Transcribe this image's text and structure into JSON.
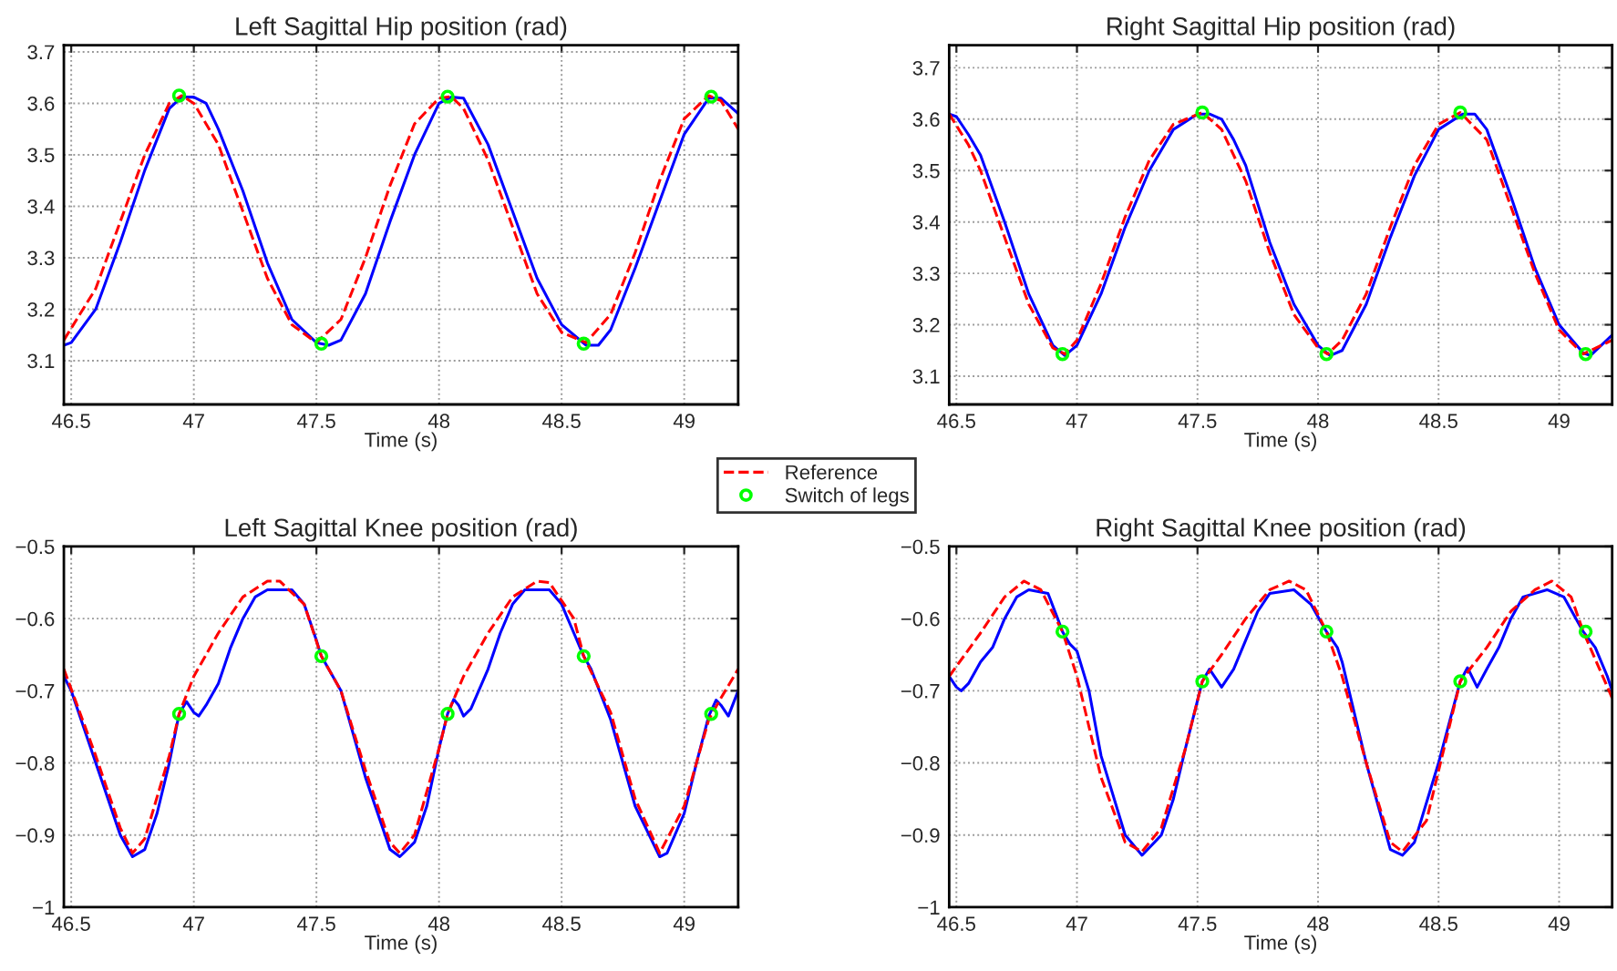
{
  "chart_data": [
    {
      "type": "line",
      "title": "Left Sagittal Hip position (rad)",
      "xlabel": "Time (s)",
      "xlim": [
        46.47,
        49.22
      ],
      "xticks": [
        46.5,
        47,
        47.5,
        48,
        48.5,
        49
      ],
      "ylim": [
        3.015,
        3.713
      ],
      "yticks": [
        3.1,
        3.2,
        3.3,
        3.4,
        3.5,
        3.6,
        3.7
      ],
      "grid": true,
      "legend": "bottom right",
      "series": [
        {
          "color": "#0000ff",
          "line_style": "solid",
          "x": [
            46.47,
            46.5,
            46.6,
            46.7,
            46.8,
            46.9,
            46.95,
            47.0,
            47.05,
            47.1,
            47.2,
            47.3,
            47.4,
            47.5,
            47.55,
            47.6,
            47.7,
            47.8,
            47.9,
            48.0,
            48.05,
            48.1,
            48.2,
            48.3,
            48.4,
            48.5,
            48.6,
            48.65,
            48.7,
            48.8,
            48.9,
            49.0,
            49.1,
            49.15,
            49.22
          ],
          "values": [
            3.13,
            3.135,
            3.2,
            3.33,
            3.47,
            3.59,
            3.612,
            3.612,
            3.6,
            3.55,
            3.43,
            3.29,
            3.18,
            3.135,
            3.13,
            3.14,
            3.23,
            3.37,
            3.5,
            3.6,
            3.612,
            3.61,
            3.52,
            3.39,
            3.26,
            3.17,
            3.13,
            3.13,
            3.16,
            3.28,
            3.41,
            3.54,
            3.61,
            3.61,
            3.58
          ]
        },
        {
          "name": "Reference",
          "color": "#ff0000",
          "line_style": "dashed",
          "x": [
            46.47,
            46.6,
            46.7,
            46.8,
            46.9,
            46.95,
            47.0,
            47.1,
            47.2,
            47.3,
            47.4,
            47.5,
            47.6,
            47.7,
            47.8,
            47.9,
            48.0,
            48.05,
            48.1,
            48.2,
            48.3,
            48.4,
            48.5,
            48.6,
            48.7,
            48.8,
            48.9,
            49.0,
            49.1,
            49.15,
            49.22
          ],
          "values": [
            3.14,
            3.24,
            3.37,
            3.5,
            3.6,
            3.615,
            3.6,
            3.52,
            3.39,
            3.26,
            3.17,
            3.135,
            3.18,
            3.3,
            3.44,
            3.56,
            3.61,
            3.613,
            3.59,
            3.49,
            3.36,
            3.23,
            3.155,
            3.135,
            3.19,
            3.31,
            3.45,
            3.57,
            3.615,
            3.605,
            3.55
          ]
        },
        {
          "name": "Switch of legs",
          "type": "scatter",
          "marker": "circle",
          "color": "#00ff00",
          "x": [
            46.94,
            47.52,
            48.035,
            48.59,
            49.11
          ],
          "values": [
            3.615,
            3.133,
            3.613,
            3.133,
            3.613
          ]
        }
      ]
    },
    {
      "type": "line",
      "title": "Right Sagittal Hip position (rad)",
      "xlabel": "Time (s)",
      "xlim": [
        46.47,
        49.22
      ],
      "xticks": [
        46.5,
        47,
        47.5,
        48,
        48.5,
        49
      ],
      "ylim": [
        3.045,
        3.744
      ],
      "yticks": [
        3.1,
        3.2,
        3.3,
        3.4,
        3.5,
        3.6,
        3.7
      ],
      "grid": true,
      "series": [
        {
          "color": "#0000ff",
          "line_style": "solid",
          "x": [
            46.47,
            46.5,
            46.55,
            46.6,
            46.7,
            46.8,
            46.9,
            46.95,
            47.0,
            47.1,
            47.2,
            47.3,
            47.4,
            47.5,
            47.55,
            47.6,
            47.65,
            47.7,
            47.8,
            47.9,
            48.0,
            48.05,
            48.1,
            48.2,
            48.3,
            48.4,
            48.5,
            48.6,
            48.65,
            48.7,
            48.8,
            48.9,
            49.0,
            49.1,
            49.13,
            49.22
          ],
          "values": [
            3.61,
            3.605,
            3.57,
            3.53,
            3.4,
            3.26,
            3.16,
            3.14,
            3.16,
            3.26,
            3.39,
            3.5,
            3.58,
            3.61,
            3.61,
            3.6,
            3.56,
            3.51,
            3.36,
            3.24,
            3.16,
            3.14,
            3.15,
            3.24,
            3.37,
            3.49,
            3.58,
            3.61,
            3.61,
            3.58,
            3.45,
            3.31,
            3.2,
            3.145,
            3.14,
            3.18
          ]
        },
        {
          "name": "Reference",
          "color": "#ff0000",
          "line_style": "dashed",
          "x": [
            46.47,
            46.55,
            46.6,
            46.7,
            46.8,
            46.9,
            46.95,
            47.0,
            47.1,
            47.2,
            47.3,
            47.4,
            47.52,
            47.6,
            47.7,
            47.8,
            47.9,
            48.0,
            48.04,
            48.1,
            48.2,
            48.3,
            48.4,
            48.5,
            48.59,
            48.7,
            48.8,
            48.9,
            49.0,
            49.1,
            49.22
          ],
          "values": [
            3.61,
            3.55,
            3.5,
            3.37,
            3.24,
            3.155,
            3.143,
            3.17,
            3.28,
            3.41,
            3.52,
            3.59,
            3.613,
            3.58,
            3.48,
            3.34,
            3.22,
            3.155,
            3.143,
            3.17,
            3.26,
            3.39,
            3.51,
            3.59,
            3.613,
            3.56,
            3.43,
            3.3,
            3.19,
            3.143,
            3.17
          ]
        },
        {
          "name": "Switch of legs",
          "type": "scatter",
          "marker": "circle",
          "color": "#00ff00",
          "x": [
            46.94,
            47.52,
            48.035,
            48.59,
            49.11
          ],
          "values": [
            3.143,
            3.613,
            3.143,
            3.613,
            3.143
          ]
        }
      ]
    },
    {
      "type": "line",
      "title": "Left Sagittal Knee position (rad)",
      "xlabel": "Time (s)",
      "xlim": [
        46.47,
        49.22
      ],
      "xticks": [
        46.5,
        47,
        47.5,
        48,
        48.5,
        49
      ],
      "ylim": [
        -1,
        -0.5
      ],
      "yticks": [
        {
          "value": -1,
          "label": "−1"
        },
        {
          "value": -0.9,
          "label": "−0.9"
        },
        {
          "value": -0.8,
          "label": "−0.8"
        },
        {
          "value": -0.7,
          "label": "−0.7"
        },
        {
          "value": -0.6,
          "label": "−0.6"
        },
        {
          "value": -0.5,
          "label": "−0.5"
        }
      ],
      "grid": true,
      "series": [
        {
          "color": "#0000ff",
          "line_style": "solid",
          "x": [
            46.47,
            46.5,
            46.6,
            46.7,
            46.75,
            46.8,
            46.85,
            46.9,
            46.94,
            46.97,
            47.0,
            47.02,
            47.05,
            47.1,
            47.15,
            47.2,
            47.25,
            47.3,
            47.4,
            47.45,
            47.5,
            47.52,
            47.55,
            47.6,
            47.7,
            47.8,
            47.84,
            47.9,
            47.95,
            48.0,
            48.035,
            48.06,
            48.08,
            48.1,
            48.13,
            48.2,
            48.25,
            48.3,
            48.35,
            48.45,
            48.5,
            48.55,
            48.59,
            48.62,
            48.7,
            48.8,
            48.9,
            48.93,
            49.0,
            49.05,
            49.1,
            49.13,
            49.15,
            49.18,
            49.22
          ],
          "values": [
            -0.68,
            -0.7,
            -0.8,
            -0.9,
            -0.93,
            -0.92,
            -0.87,
            -0.8,
            -0.732,
            -0.715,
            -0.73,
            -0.735,
            -0.72,
            -0.69,
            -0.64,
            -0.6,
            -0.57,
            -0.56,
            -0.56,
            -0.58,
            -0.63,
            -0.652,
            -0.67,
            -0.7,
            -0.82,
            -0.92,
            -0.93,
            -0.91,
            -0.86,
            -0.78,
            -0.732,
            -0.712,
            -0.72,
            -0.735,
            -0.725,
            -0.67,
            -0.62,
            -0.58,
            -0.56,
            -0.56,
            -0.58,
            -0.62,
            -0.652,
            -0.67,
            -0.74,
            -0.86,
            -0.93,
            -0.925,
            -0.87,
            -0.8,
            -0.735,
            -0.713,
            -0.72,
            -0.735,
            -0.7
          ]
        },
        {
          "name": "Reference",
          "color": "#ff0000",
          "line_style": "dashed",
          "x": [
            46.47,
            46.6,
            46.7,
            46.75,
            46.8,
            46.9,
            46.94,
            47.0,
            47.1,
            47.2,
            47.3,
            47.35,
            47.45,
            47.52,
            47.6,
            47.7,
            47.8,
            47.84,
            47.9,
            48.0,
            48.035,
            48.1,
            48.2,
            48.3,
            48.4,
            48.45,
            48.55,
            48.59,
            48.7,
            48.8,
            48.9,
            49.0,
            49.1,
            49.15,
            49.22
          ],
          "values": [
            -0.67,
            -0.79,
            -0.89,
            -0.925,
            -0.905,
            -0.79,
            -0.732,
            -0.68,
            -0.62,
            -0.57,
            -0.548,
            -0.548,
            -0.58,
            -0.652,
            -0.7,
            -0.81,
            -0.91,
            -0.925,
            -0.9,
            -0.78,
            -0.732,
            -0.68,
            -0.62,
            -0.57,
            -0.548,
            -0.55,
            -0.6,
            -0.652,
            -0.73,
            -0.85,
            -0.925,
            -0.86,
            -0.74,
            -0.71,
            -0.67
          ]
        },
        {
          "name": "Switch of legs",
          "type": "scatter",
          "marker": "circle",
          "color": "#00ff00",
          "x": [
            46.94,
            47.52,
            48.035,
            48.59,
            49.11
          ],
          "values": [
            -0.732,
            -0.652,
            -0.732,
            -0.652,
            -0.732
          ]
        }
      ]
    },
    {
      "type": "line",
      "title": "Right Sagittal Knee position (rad)",
      "xlabel": "Time (s)",
      "xlim": [
        46.47,
        49.22
      ],
      "xticks": [
        46.5,
        47,
        47.5,
        48,
        48.5,
        49
      ],
      "ylim": [
        -1,
        -0.5
      ],
      "yticks": [
        {
          "value": -1,
          "label": "−1"
        },
        {
          "value": -0.9,
          "label": "−0.9"
        },
        {
          "value": -0.8,
          "label": "−0.8"
        },
        {
          "value": -0.7,
          "label": "−0.7"
        },
        {
          "value": -0.6,
          "label": "−0.6"
        },
        {
          "value": -0.5,
          "label": "−0.5"
        }
      ],
      "grid": true,
      "series": [
        {
          "color": "#0000ff",
          "line_style": "solid",
          "x": [
            46.47,
            46.5,
            46.52,
            46.55,
            46.6,
            46.65,
            46.7,
            46.75,
            46.8,
            46.88,
            46.92,
            46.94,
            46.97,
            47.0,
            47.05,
            47.1,
            47.2,
            47.27,
            47.35,
            47.4,
            47.45,
            47.52,
            47.55,
            47.6,
            47.65,
            47.7,
            47.75,
            47.8,
            47.9,
            47.97,
            48.035,
            48.08,
            48.1,
            48.2,
            48.3,
            48.35,
            48.4,
            48.5,
            48.59,
            48.62,
            48.66,
            48.7,
            48.75,
            48.8,
            48.85,
            48.95,
            49.02,
            49.1,
            49.15,
            49.2,
            49.22
          ],
          "values": [
            -0.68,
            -0.695,
            -0.7,
            -0.69,
            -0.66,
            -0.64,
            -0.6,
            -0.57,
            -0.56,
            -0.565,
            -0.6,
            -0.618,
            -0.635,
            -0.645,
            -0.7,
            -0.79,
            -0.9,
            -0.928,
            -0.9,
            -0.85,
            -0.78,
            -0.687,
            -0.67,
            -0.695,
            -0.67,
            -0.63,
            -0.59,
            -0.565,
            -0.56,
            -0.58,
            -0.618,
            -0.64,
            -0.66,
            -0.8,
            -0.92,
            -0.928,
            -0.91,
            -0.8,
            -0.687,
            -0.668,
            -0.695,
            -0.67,
            -0.64,
            -0.6,
            -0.57,
            -0.56,
            -0.57,
            -0.618,
            -0.64,
            -0.68,
            -0.7
          ]
        },
        {
          "name": "Reference",
          "color": "#ff0000",
          "line_style": "dashed",
          "x": [
            46.47,
            46.6,
            46.7,
            46.78,
            46.85,
            46.94,
            47.0,
            47.1,
            47.2,
            47.27,
            47.35,
            47.45,
            47.52,
            47.6,
            47.7,
            47.8,
            47.88,
            47.95,
            48.035,
            48.1,
            48.2,
            48.3,
            48.35,
            48.45,
            48.59,
            48.7,
            48.8,
            48.9,
            48.97,
            49.05,
            49.1,
            49.22
          ],
          "values": [
            -0.68,
            -0.62,
            -0.57,
            -0.548,
            -0.56,
            -0.618,
            -0.68,
            -0.82,
            -0.91,
            -0.923,
            -0.89,
            -0.78,
            -0.687,
            -0.65,
            -0.6,
            -0.56,
            -0.548,
            -0.56,
            -0.618,
            -0.68,
            -0.8,
            -0.91,
            -0.923,
            -0.88,
            -0.687,
            -0.64,
            -0.59,
            -0.56,
            -0.548,
            -0.57,
            -0.618,
            -0.71
          ]
        },
        {
          "name": "Switch of legs",
          "type": "scatter",
          "marker": "circle",
          "color": "#00ff00",
          "x": [
            46.94,
            47.52,
            48.035,
            48.59,
            49.11
          ],
          "values": [
            -0.618,
            -0.687,
            -0.618,
            -0.687,
            -0.618
          ]
        }
      ]
    }
  ]
}
